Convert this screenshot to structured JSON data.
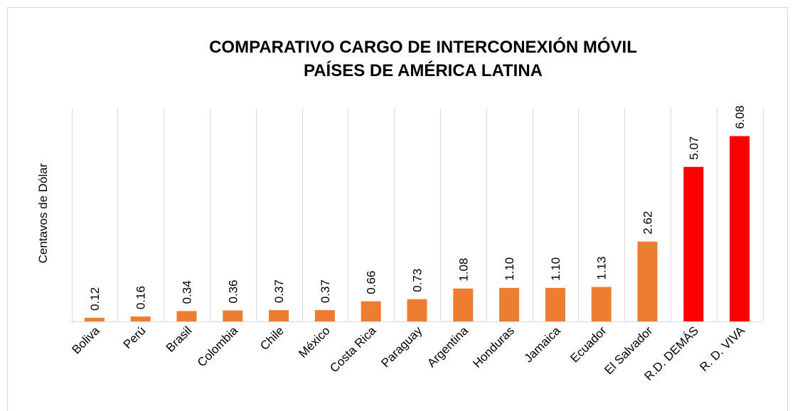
{
  "chart_data": {
    "type": "bar",
    "title": [
      "COMPARATIVO  CARGO DE INTERCONEXIÓN MÓVIL",
      "PAÍSES DE AMÉRICA LATINA"
    ],
    "y_label": "Centavos de Dólar",
    "categories": [
      "Boliva",
      "Perú",
      "Brasil",
      "Colombia",
      "Chile",
      "México",
      "Costa Rica",
      "Paraguay",
      "Argentina",
      "Honduras",
      "Jamaica",
      "Ecuador",
      "El Salvador",
      "R.D. DEMÁS",
      "R. D. VIVA"
    ],
    "values": [
      0.12,
      0.16,
      0.34,
      0.36,
      0.37,
      0.37,
      0.66,
      0.73,
      1.08,
      1.1,
      1.1,
      1.13,
      2.62,
      5.07,
      6.08
    ],
    "value_labels": [
      "0.12",
      "0.16",
      "0.34",
      "0.36",
      "0.37",
      "0.37",
      "0.66",
      "0.73",
      "1.08",
      "1.10",
      "1.10",
      "1.13",
      "2.62",
      "5.07",
      "6.08"
    ],
    "colors": [
      "#ED7D31",
      "#ED7D31",
      "#ED7D31",
      "#ED7D31",
      "#ED7D31",
      "#ED7D31",
      "#ED7D31",
      "#ED7D31",
      "#ED7D31",
      "#ED7D31",
      "#ED7D31",
      "#ED7D31",
      "#ED7D31",
      "#FF0000",
      "#FF0000"
    ],
    "ylim": [
      0,
      7
    ],
    "grid": true
  }
}
